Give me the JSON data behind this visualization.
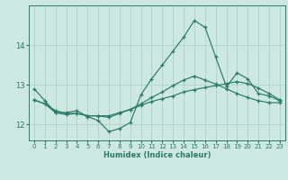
{
  "xlabel": "Humidex (Indice chaleur)",
  "bg_color": "#cce8e0",
  "grid_color": "#aad4cc",
  "line_color": "#2a7a6a",
  "xlim": [
    -0.5,
    23.5
  ],
  "ylim": [
    11.6,
    15.0
  ],
  "yticks": [
    12,
    13,
    14
  ],
  "xticks": [
    0,
    1,
    2,
    3,
    4,
    5,
    6,
    7,
    8,
    9,
    10,
    11,
    12,
    13,
    14,
    15,
    16,
    17,
    18,
    19,
    20,
    21,
    22,
    23
  ],
  "series1_x": [
    0,
    1,
    2,
    3,
    4,
    5,
    6,
    7,
    8,
    9,
    10,
    11,
    12,
    13,
    14,
    15,
    16,
    17,
    18,
    19,
    20,
    21,
    22,
    23
  ],
  "series1_y": [
    12.9,
    12.6,
    12.3,
    12.3,
    12.35,
    12.2,
    12.1,
    11.82,
    11.9,
    12.05,
    12.75,
    13.15,
    13.5,
    13.85,
    14.2,
    14.62,
    14.45,
    13.7,
    12.95,
    13.3,
    13.15,
    12.78,
    12.72,
    12.6
  ],
  "series2_x": [
    0,
    1,
    2,
    3,
    4,
    5,
    6,
    7,
    8,
    9,
    10,
    11,
    12,
    13,
    14,
    15,
    16,
    17,
    18,
    19,
    20,
    21,
    22,
    23
  ],
  "series2_y": [
    12.62,
    12.52,
    12.35,
    12.28,
    12.28,
    12.22,
    12.22,
    12.22,
    12.3,
    12.38,
    12.48,
    12.58,
    12.65,
    12.72,
    12.82,
    12.88,
    12.93,
    12.98,
    13.03,
    13.08,
    13.03,
    12.92,
    12.78,
    12.62
  ],
  "series3_x": [
    0,
    1,
    2,
    3,
    4,
    5,
    6,
    7,
    8,
    9,
    10,
    11,
    12,
    13,
    14,
    15,
    16,
    17,
    18,
    19,
    20,
    21,
    22,
    23
  ],
  "series3_y": [
    12.62,
    12.52,
    12.3,
    12.25,
    12.28,
    12.22,
    12.22,
    12.18,
    12.28,
    12.38,
    12.52,
    12.68,
    12.82,
    12.98,
    13.12,
    13.22,
    13.12,
    13.02,
    12.9,
    12.78,
    12.68,
    12.6,
    12.55,
    12.55
  ]
}
